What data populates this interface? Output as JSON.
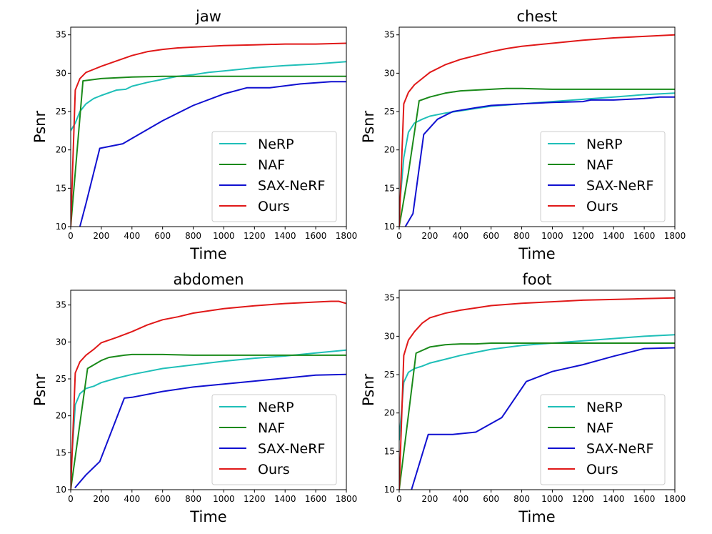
{
  "colors": {
    "NeRP": "#1fbfb8",
    "NAF": "#1a8a1a",
    "SAX-NeRF": "#1010d0",
    "Ours": "#e01818"
  },
  "chart_data": [
    {
      "type": "line",
      "title": "jaw",
      "xlabel": "Time",
      "ylabel": "Psnr",
      "xlim": [
        0,
        1800
      ],
      "ylim": [
        10,
        36
      ],
      "xticks": [
        "0",
        "200",
        "400",
        "600",
        "800",
        "1000",
        "1200",
        "1400",
        "1600",
        "1800"
      ],
      "yticks": [
        "10",
        "15",
        "20",
        "25",
        "30",
        "35"
      ],
      "legend": [
        "NeRP",
        "NAF",
        "SAX-NeRF",
        "Ours"
      ],
      "legend_position": "lower-right",
      "series": [
        {
          "name": "NeRP",
          "x": [
            0,
            30,
            60,
            100,
            150,
            200,
            300,
            360,
            400,
            500,
            600,
            700,
            800,
            900,
            1000,
            1200,
            1400,
            1600,
            1800
          ],
          "y": [
            22.5,
            23.5,
            25.0,
            26.0,
            26.7,
            27.1,
            27.8,
            27.9,
            28.3,
            28.8,
            29.2,
            29.6,
            29.8,
            30.1,
            30.3,
            30.7,
            31.0,
            31.2,
            31.5
          ]
        },
        {
          "name": "NAF",
          "x": [
            0,
            80,
            200,
            400,
            600,
            800,
            1000,
            1200,
            1400,
            1600,
            1800
          ],
          "y": [
            10.0,
            29.0,
            29.3,
            29.5,
            29.6,
            29.6,
            29.6,
            29.6,
            29.6,
            29.6,
            29.6
          ]
        },
        {
          "name": "SAX-NeRF",
          "x": [
            60,
            100,
            190,
            340,
            400,
            600,
            800,
            1000,
            1150,
            1300,
            1500,
            1700,
            1800
          ],
          "y": [
            10.0,
            13.0,
            20.2,
            20.8,
            21.5,
            23.8,
            25.8,
            27.3,
            28.1,
            28.1,
            28.6,
            28.9,
            28.9
          ]
        },
        {
          "name": "Ours",
          "x": [
            0,
            30,
            60,
            100,
            150,
            200,
            300,
            400,
            500,
            600,
            700,
            800,
            1000,
            1200,
            1400,
            1600,
            1800
          ],
          "y": [
            10.0,
            27.8,
            29.3,
            30.1,
            30.5,
            30.9,
            31.6,
            32.3,
            32.8,
            33.1,
            33.3,
            33.4,
            33.6,
            33.7,
            33.8,
            33.8,
            33.9
          ]
        }
      ]
    },
    {
      "type": "line",
      "title": "chest",
      "xlabel": "Time",
      "ylabel": "Psnr",
      "xlim": [
        0,
        1800
      ],
      "ylim": [
        10,
        36
      ],
      "xticks": [
        "0",
        "200",
        "400",
        "600",
        "800",
        "1000",
        "1200",
        "1400",
        "1600",
        "1800"
      ],
      "yticks": [
        "10",
        "15",
        "20",
        "25",
        "30",
        "35"
      ],
      "legend": [
        "NeRP",
        "NAF",
        "SAX-NeRF",
        "Ours"
      ],
      "legend_position": "lower-right",
      "series": [
        {
          "name": "NeRP",
          "x": [
            0,
            30,
            60,
            100,
            150,
            200,
            300,
            400,
            500,
            600,
            800,
            1000,
            1200,
            1400,
            1600,
            1800
          ],
          "y": [
            12.0,
            19.0,
            22.3,
            23.5,
            24.0,
            24.4,
            24.8,
            25.1,
            25.4,
            25.7,
            26.0,
            26.3,
            26.6,
            26.9,
            27.2,
            27.4
          ]
        },
        {
          "name": "NAF",
          "x": [
            0,
            60,
            130,
            200,
            300,
            400,
            500,
            600,
            700,
            800,
            1000,
            1200,
            1400,
            1600,
            1800
          ],
          "y": [
            10.0,
            17.0,
            26.4,
            26.9,
            27.4,
            27.7,
            27.8,
            27.9,
            28.0,
            28.0,
            27.9,
            27.9,
            27.9,
            27.9,
            27.9
          ]
        },
        {
          "name": "SAX-NeRF",
          "x": [
            40,
            90,
            160,
            250,
            350,
            500,
            600,
            800,
            1000,
            1200,
            1250,
            1400,
            1600,
            1700,
            1800
          ],
          "y": [
            10.0,
            11.7,
            22.0,
            24.0,
            25.0,
            25.5,
            25.8,
            26.0,
            26.2,
            26.3,
            26.5,
            26.5,
            26.7,
            26.9,
            26.9
          ]
        },
        {
          "name": "Ours",
          "x": [
            0,
            30,
            60,
            100,
            150,
            200,
            300,
            400,
            500,
            600,
            700,
            800,
            1000,
            1200,
            1400,
            1600,
            1800
          ],
          "y": [
            10.0,
            26.0,
            27.5,
            28.5,
            29.3,
            30.1,
            31.1,
            31.8,
            32.3,
            32.8,
            33.2,
            33.5,
            33.9,
            34.3,
            34.6,
            34.8,
            35.0
          ]
        }
      ]
    },
    {
      "type": "line",
      "title": "abdomen",
      "xlabel": "Time",
      "ylabel": "Psnr",
      "xlim": [
        0,
        1800
      ],
      "ylim": [
        10,
        37
      ],
      "xticks": [
        "0",
        "200",
        "400",
        "600",
        "800",
        "1000",
        "1200",
        "1400",
        "1600",
        "1800"
      ],
      "yticks": [
        "10",
        "15",
        "20",
        "25",
        "30",
        "35"
      ],
      "legend": [
        "NeRP",
        "NAF",
        "SAX-NeRF",
        "Ours"
      ],
      "legend_position": "lower-right",
      "series": [
        {
          "name": "NeRP",
          "x": [
            0,
            30,
            60,
            100,
            150,
            200,
            300,
            400,
            500,
            600,
            800,
            1000,
            1200,
            1400,
            1600,
            1800
          ],
          "y": [
            12.0,
            21.5,
            23.0,
            23.7,
            24.0,
            24.5,
            25.1,
            25.6,
            26.0,
            26.4,
            26.9,
            27.4,
            27.8,
            28.1,
            28.5,
            28.9
          ]
        },
        {
          "name": "NAF",
          "x": [
            0,
            110,
            200,
            250,
            350,
            400,
            500,
            600,
            800,
            1000,
            1200,
            1400,
            1600,
            1800
          ],
          "y": [
            10.0,
            26.4,
            27.5,
            27.9,
            28.2,
            28.3,
            28.3,
            28.3,
            28.2,
            28.2,
            28.2,
            28.2,
            28.2,
            28.2
          ]
        },
        {
          "name": "SAX-NeRF",
          "x": [
            30,
            100,
            190,
            350,
            400,
            600,
            800,
            1000,
            1200,
            1400,
            1600,
            1800
          ],
          "y": [
            10.3,
            12.0,
            13.8,
            22.4,
            22.5,
            23.3,
            23.9,
            24.3,
            24.7,
            25.1,
            25.5,
            25.6
          ]
        },
        {
          "name": "Ours",
          "x": [
            0,
            30,
            60,
            100,
            150,
            200,
            300,
            400,
            500,
            600,
            700,
            800,
            1000,
            1200,
            1400,
            1600,
            1700,
            1750,
            1800
          ],
          "y": [
            10.0,
            25.8,
            27.3,
            28.2,
            29.0,
            29.9,
            30.6,
            31.4,
            32.3,
            33.0,
            33.4,
            33.9,
            34.5,
            34.9,
            35.2,
            35.4,
            35.5,
            35.5,
            35.2
          ]
        }
      ]
    },
    {
      "type": "line",
      "title": "foot",
      "xlabel": "Time",
      "ylabel": "Psnr",
      "xlim": [
        0,
        1800
      ],
      "ylim": [
        10,
        36
      ],
      "xticks": [
        "0",
        "200",
        "400",
        "600",
        "800",
        "1000",
        "1200",
        "1400",
        "1600",
        "1800"
      ],
      "yticks": [
        "10",
        "15",
        "20",
        "25",
        "30",
        "35"
      ],
      "legend": [
        "NeRP",
        "NAF",
        "SAX-NeRF",
        "Ours"
      ],
      "legend_position": "lower-right",
      "series": [
        {
          "name": "NeRP",
          "x": [
            0,
            30,
            60,
            100,
            150,
            200,
            300,
            400,
            500,
            600,
            800,
            1000,
            1200,
            1400,
            1600,
            1800
          ],
          "y": [
            16.5,
            24.0,
            25.3,
            25.8,
            26.1,
            26.5,
            27.0,
            27.5,
            27.9,
            28.3,
            28.8,
            29.1,
            29.4,
            29.7,
            30.0,
            30.2
          ]
        },
        {
          "name": "NAF",
          "x": [
            0,
            110,
            200,
            300,
            400,
            500,
            600,
            800,
            1000,
            1200,
            1400,
            1600,
            1800
          ],
          "y": [
            10.0,
            27.8,
            28.6,
            28.9,
            29.0,
            29.0,
            29.1,
            29.1,
            29.1,
            29.1,
            29.1,
            29.1,
            29.1
          ]
        },
        {
          "name": "SAX-NeRF",
          "x": [
            80,
            190,
            350,
            500,
            670,
            830,
            1000,
            1200,
            1400,
            1600,
            1800
          ],
          "y": [
            10.0,
            17.2,
            17.2,
            17.5,
            19.4,
            24.1,
            25.4,
            26.3,
            27.4,
            28.4,
            28.5
          ]
        },
        {
          "name": "Ours",
          "x": [
            0,
            30,
            60,
            100,
            150,
            200,
            300,
            400,
            500,
            600,
            800,
            1000,
            1200,
            1400,
            1600,
            1800
          ],
          "y": [
            10.0,
            27.5,
            29.5,
            30.6,
            31.7,
            32.4,
            33.0,
            33.4,
            33.7,
            34.0,
            34.3,
            34.5,
            34.7,
            34.8,
            34.9,
            35.0
          ]
        }
      ]
    }
  ]
}
